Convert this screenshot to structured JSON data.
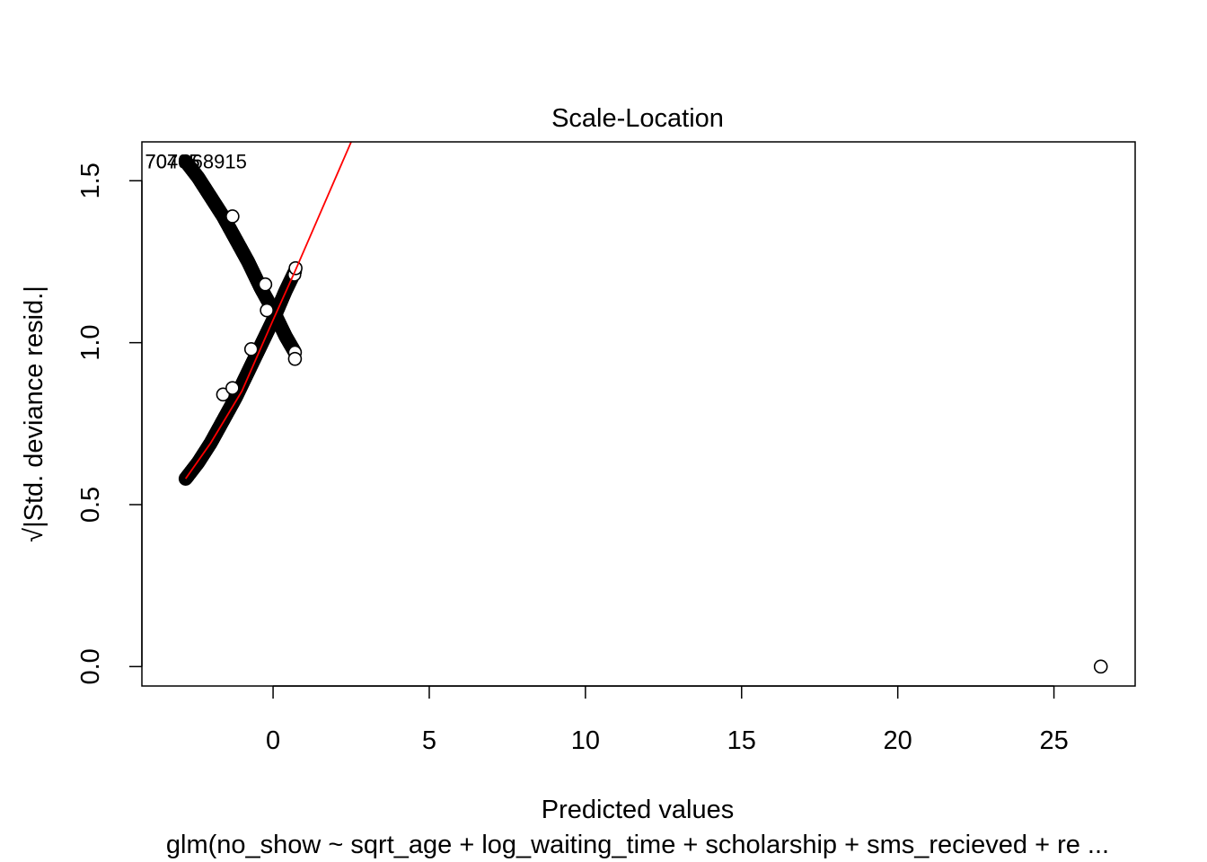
{
  "chart_data": {
    "type": "scatter",
    "title": "Scale-Location",
    "xlabel": "Predicted values",
    "ylabel": "√|Std. deviance resid.|",
    "subtitle": "glm(no_show ~ sqrt_age + log_waiting_time + scholarship + sms_recieved + re ...",
    "xlim": [
      -4.2,
      27.6
    ],
    "ylim": [
      -0.06,
      1.62
    ],
    "x_ticks": [
      0,
      5,
      10,
      15,
      20,
      25
    ],
    "x_tick_labels": [
      "0",
      "5",
      "10",
      "15",
      "20",
      "25"
    ],
    "y_ticks": [
      0.0,
      0.5,
      1.0,
      1.5
    ],
    "y_tick_labels": [
      "0.0",
      "0.5",
      "1.0",
      "1.5"
    ],
    "grid": false,
    "legend": "none",
    "series": [
      {
        "kind": "dense_curve",
        "x": [
          -2.8,
          -2.4,
          -2.0,
          -1.6,
          -1.2,
          -0.8,
          -0.4,
          0.0,
          0.4,
          0.7
        ],
        "y": [
          1.56,
          1.51,
          1.45,
          1.39,
          1.32,
          1.25,
          1.17,
          1.1,
          1.02,
          0.97
        ]
      },
      {
        "kind": "dense_curve",
        "x": [
          -2.8,
          -2.4,
          -2.0,
          -1.6,
          -1.2,
          -0.8,
          -0.4,
          0.0,
          0.4,
          0.7
        ],
        "y": [
          0.58,
          0.63,
          0.69,
          0.76,
          0.83,
          0.91,
          0.99,
          1.07,
          1.16,
          1.22
        ]
      },
      {
        "kind": "points",
        "x": [
          -1.3,
          -1.6,
          -0.25,
          -0.2,
          -0.7,
          -1.3,
          0.7,
          0.68,
          0.72,
          26.5
        ],
        "y": [
          1.39,
          0.84,
          1.18,
          1.1,
          0.98,
          0.86,
          0.95,
          1.21,
          1.23,
          0.0
        ]
      }
    ],
    "smoother": {
      "color": "#ff0000",
      "x": [
        -2.8,
        -2.0,
        -1.0,
        0.0,
        0.7,
        2.5
      ],
      "y": [
        0.58,
        0.69,
        0.85,
        1.07,
        1.22,
        1.62
      ]
    },
    "point_labels": [
      {
        "text": "70405",
        "x": -4.1,
        "y": 1.56
      },
      {
        "text": "70705",
        "x": -4.1,
        "y": 1.56
      },
      {
        "text": "68915",
        "x": -2.6,
        "y": 1.56
      }
    ]
  }
}
